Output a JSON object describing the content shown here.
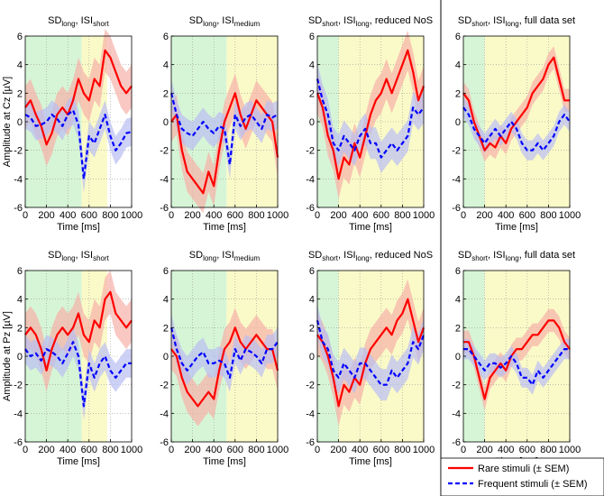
{
  "chart_data": {
    "type": "line",
    "x_range": [
      0,
      1000
    ],
    "y_range": [
      6,
      -6
    ],
    "x_ticks": [
      "0",
      "200",
      "400",
      "600",
      "800",
      "1000"
    ],
    "y_ticks": [
      "-6",
      "-4",
      "-2",
      "0",
      "2",
      "4",
      "6"
    ],
    "xlabel": "Time [ms]",
    "ylabels": [
      "Amplitude at Cz [µV]",
      "Amplitude at Pz [µV]"
    ],
    "grid": true,
    "legend": {
      "position": "bottom-right",
      "entries": [
        {
          "name": "Rare stimuli (± SEM)",
          "color": "#ff0000",
          "style": "solid"
        },
        {
          "name": "Frequent stimuli (± SEM)",
          "color": "#0000ff",
          "style": "dashed"
        }
      ]
    },
    "colors": {
      "green": "#d6f5d6",
      "yellow": "#fafac8",
      "rare": "#ff0000",
      "rare_band": "#f7b0a8",
      "freq": "#0000ff",
      "freq_band": "#b9bdf2"
    },
    "columns": [
      {
        "title": {
          "a": "SD",
          "a_sub": "long",
          "b": ", ISI",
          "b_sub": "short",
          "c": ""
        },
        "shading": [
          {
            "from": 0,
            "to": 530,
            "color": "green"
          },
          {
            "from": 530,
            "to": 770,
            "color": "yellow"
          }
        ]
      },
      {
        "title": {
          "a": "SD",
          "a_sub": "long",
          "b": ", ISI",
          "b_sub": "medium",
          "c": ""
        },
        "shading": [
          {
            "from": 0,
            "to": 520,
            "color": "green"
          },
          {
            "from": 520,
            "to": 1000,
            "color": "yellow"
          }
        ]
      },
      {
        "title": {
          "a": "SD",
          "a_sub": "short",
          "b": ", ISI",
          "b_sub": "long",
          "c": ", reduced NoS"
        },
        "shading": [
          {
            "from": 0,
            "to": 200,
            "color": "green"
          },
          {
            "from": 200,
            "to": 1000,
            "color": "yellow"
          }
        ]
      },
      {
        "title": {
          "a": "SD",
          "a_sub": "short",
          "b": ", ISI",
          "b_sub": "long",
          "c": ", full data set"
        },
        "shading": [
          {
            "from": 0,
            "to": 200,
            "color": "green"
          },
          {
            "from": 200,
            "to": 1000,
            "color": "yellow"
          }
        ]
      }
    ],
    "panels": [
      {
        "row": "Cz",
        "column": 1,
        "series": [
          {
            "name": "Rare stimuli",
            "x": [
              0,
              50,
              100,
              150,
              200,
              250,
              300,
              350,
              400,
              450,
              500,
              550,
              600,
              650,
              700,
              750,
              800,
              850,
              900,
              950,
              1000
            ],
            "y": [
              1.0,
              1.5,
              0.5,
              -0.3,
              -1.6,
              -0.8,
              0.5,
              1.0,
              0.5,
              1.5,
              3.0,
              2.0,
              1.5,
              3.0,
              2.5,
              5.0,
              4.5,
              3.5,
              2.5,
              2.0,
              2.5
            ],
            "sem": 1.5
          },
          {
            "name": "Frequent stimuli",
            "x": [
              0,
              50,
              100,
              150,
              200,
              250,
              300,
              350,
              400,
              450,
              500,
              550,
              600,
              650,
              700,
              750,
              800,
              850,
              900,
              950,
              1000
            ],
            "y": [
              0.5,
              0.3,
              -0.3,
              -0.2,
              0.0,
              0.5,
              0.2,
              -0.3,
              0.5,
              0.8,
              -0.2,
              -4.0,
              -1.0,
              -1.5,
              -0.5,
              0.5,
              -1.0,
              -2.0,
              -1.5,
              -0.8,
              -0.7
            ],
            "sem": 1.0
          }
        ]
      },
      {
        "row": "Cz",
        "column": 2,
        "series": [
          {
            "name": "Rare stimuli",
            "x": [
              0,
              50,
              100,
              150,
              200,
              250,
              300,
              350,
              400,
              450,
              500,
              550,
              600,
              650,
              700,
              750,
              800,
              850,
              900,
              950,
              1000
            ],
            "y": [
              0.0,
              0.5,
              -2.0,
              -3.5,
              -4.0,
              -4.5,
              -5.0,
              -3.5,
              -4.5,
              -2.0,
              0.0,
              1.0,
              2.0,
              0.5,
              -0.5,
              0.5,
              1.5,
              1.0,
              0.5,
              0.0,
              -2.5
            ],
            "sem": 1.4
          },
          {
            "name": "Frequent stimuli",
            "x": [
              0,
              50,
              100,
              150,
              200,
              250,
              300,
              350,
              400,
              450,
              500,
              550,
              600,
              650,
              700,
              750,
              800,
              850,
              900,
              950,
              1000
            ],
            "y": [
              2.0,
              0.5,
              -0.5,
              -0.8,
              -1.0,
              -0.5,
              0.0,
              -0.5,
              -0.8,
              -0.3,
              -0.5,
              -3.0,
              0.5,
              -0.3,
              0.3,
              0.5,
              0.0,
              -0.5,
              0.5,
              0.3,
              0.5
            ],
            "sem": 1.0
          }
        ]
      },
      {
        "row": "Cz",
        "column": 3,
        "series": [
          {
            "name": "Rare stimuli",
            "x": [
              0,
              50,
              100,
              150,
              200,
              250,
              300,
              350,
              400,
              450,
              500,
              550,
              600,
              650,
              700,
              750,
              800,
              850,
              900,
              950,
              1000
            ],
            "y": [
              2.0,
              1.0,
              -1.0,
              -2.0,
              -4.0,
              -2.5,
              -3.0,
              -1.5,
              -2.5,
              -1.0,
              0.5,
              1.5,
              2.0,
              3.0,
              2.0,
              3.0,
              4.0,
              5.0,
              3.5,
              1.5,
              2.5
            ],
            "sem": 1.4
          },
          {
            "name": "Frequent stimuli",
            "x": [
              0,
              50,
              100,
              150,
              200,
              250,
              300,
              350,
              400,
              450,
              500,
              550,
              600,
              650,
              700,
              750,
              800,
              850,
              900,
              950,
              1000
            ],
            "y": [
              3.0,
              1.5,
              0.5,
              -1.5,
              -2.0,
              -1.0,
              -1.5,
              -2.0,
              -1.0,
              -0.5,
              -1.5,
              -1.5,
              -2.5,
              -2.0,
              -1.5,
              -2.0,
              -1.5,
              -1.0,
              1.0,
              0.5,
              1.0
            ],
            "sem": 1.1
          }
        ]
      },
      {
        "row": "Cz",
        "column": 4,
        "series": [
          {
            "name": "Rare stimuli",
            "x": [
              0,
              50,
              100,
              150,
              200,
              250,
              300,
              350,
              400,
              450,
              500,
              550,
              600,
              650,
              700,
              750,
              800,
              850,
              900,
              950,
              1000
            ],
            "y": [
              2.0,
              1.5,
              0.0,
              -1.0,
              -2.0,
              -1.5,
              -1.8,
              -1.0,
              -1.5,
              -0.5,
              0.0,
              0.5,
              1.0,
              2.0,
              2.5,
              3.0,
              4.0,
              4.5,
              3.0,
              1.5,
              1.5
            ],
            "sem": 0.8
          },
          {
            "name": "Frequent stimuli",
            "x": [
              0,
              50,
              100,
              150,
              200,
              250,
              300,
              350,
              400,
              450,
              500,
              550,
              600,
              650,
              700,
              750,
              800,
              850,
              900,
              950,
              1000
            ],
            "y": [
              1.0,
              0.5,
              -0.5,
              -1.0,
              -1.5,
              -1.0,
              -0.5,
              -1.0,
              -0.5,
              0.0,
              -0.5,
              -1.5,
              -2.0,
              -2.0,
              -1.5,
              -2.0,
              -1.5,
              -1.0,
              0.0,
              0.5,
              0.0
            ],
            "sem": 0.7
          }
        ]
      },
      {
        "row": "Pz",
        "column": 1,
        "series": [
          {
            "name": "Rare stimuli",
            "x": [
              0,
              50,
              100,
              150,
              200,
              250,
              300,
              350,
              400,
              450,
              500,
              550,
              600,
              650,
              700,
              750,
              800,
              850,
              900,
              950,
              1000
            ],
            "y": [
              1.5,
              2.0,
              1.5,
              0.5,
              -1.0,
              0.5,
              1.5,
              2.0,
              1.5,
              2.0,
              3.0,
              1.5,
              1.0,
              2.5,
              2.0,
              4.0,
              4.5,
              3.0,
              2.5,
              2.0,
              2.5
            ],
            "sem": 1.5
          },
          {
            "name": "Frequent stimuli",
            "x": [
              0,
              50,
              100,
              150,
              200,
              250,
              300,
              350,
              400,
              450,
              500,
              550,
              600,
              650,
              700,
              750,
              800,
              850,
              900,
              950,
              1000
            ],
            "y": [
              0.5,
              0.0,
              0.2,
              -0.3,
              0.5,
              0.3,
              0.0,
              -0.5,
              0.2,
              1.0,
              0.0,
              -3.5,
              -0.5,
              -1.5,
              -0.5,
              0.0,
              -1.0,
              -1.5,
              -1.0,
              -0.5,
              -0.5
            ],
            "sem": 1.0
          }
        ]
      },
      {
        "row": "Pz",
        "column": 2,
        "series": [
          {
            "name": "Rare stimuli",
            "x": [
              0,
              50,
              100,
              150,
              200,
              250,
              300,
              350,
              400,
              450,
              500,
              550,
              600,
              650,
              700,
              750,
              800,
              850,
              900,
              950,
              1000
            ],
            "y": [
              0.5,
              0.0,
              -1.5,
              -2.5,
              -3.0,
              -3.5,
              -3.0,
              -2.5,
              -3.0,
              -1.0,
              0.5,
              1.0,
              2.0,
              1.0,
              0.5,
              1.0,
              1.5,
              1.0,
              0.5,
              0.5,
              -1.0
            ],
            "sem": 1.4
          },
          {
            "name": "Frequent stimuli",
            "x": [
              0,
              50,
              100,
              150,
              200,
              250,
              300,
              350,
              400,
              450,
              500,
              550,
              600,
              650,
              700,
              750,
              800,
              850,
              900,
              950,
              1000
            ],
            "y": [
              2.0,
              0.5,
              -0.5,
              -1.0,
              -0.5,
              0.0,
              0.3,
              -0.5,
              -0.5,
              -0.3,
              -0.5,
              -1.5,
              0.5,
              -0.3,
              0.5,
              0.3,
              0.0,
              -0.5,
              0.5,
              0.5,
              1.0
            ],
            "sem": 1.0
          }
        ]
      },
      {
        "row": "Pz",
        "column": 3,
        "series": [
          {
            "name": "Rare stimuli",
            "x": [
              0,
              50,
              100,
              150,
              200,
              250,
              300,
              350,
              400,
              450,
              500,
              550,
              600,
              650,
              700,
              750,
              800,
              850,
              900,
              950,
              1000
            ],
            "y": [
              1.5,
              1.0,
              0.0,
              -1.5,
              -3.5,
              -2.0,
              -2.5,
              -1.5,
              -2.0,
              -0.5,
              0.5,
              1.0,
              1.5,
              2.0,
              1.5,
              2.5,
              3.0,
              4.0,
              2.5,
              1.0,
              2.0
            ],
            "sem": 1.4
          },
          {
            "name": "Frequent stimuli",
            "x": [
              0,
              50,
              100,
              150,
              200,
              250,
              300,
              350,
              400,
              450,
              500,
              550,
              600,
              650,
              700,
              750,
              800,
              850,
              900,
              950,
              1000
            ],
            "y": [
              2.5,
              1.0,
              0.5,
              -1.0,
              -1.5,
              -0.5,
              -1.0,
              -1.5,
              -0.5,
              -0.5,
              -1.0,
              -1.5,
              -2.0,
              -2.0,
              -1.0,
              -1.5,
              -1.0,
              -0.5,
              1.0,
              0.5,
              1.5
            ],
            "sem": 1.1
          }
        ]
      },
      {
        "row": "Pz",
        "column": 4,
        "series": [
          {
            "name": "Rare stimuli",
            "x": [
              0,
              50,
              100,
              150,
              200,
              250,
              300,
              350,
              400,
              450,
              500,
              550,
              600,
              650,
              700,
              750,
              800,
              850,
              900,
              950,
              1000
            ],
            "y": [
              1.0,
              1.0,
              0.0,
              -1.5,
              -3.0,
              -1.5,
              -1.0,
              -0.5,
              -1.0,
              0.0,
              0.5,
              0.5,
              1.0,
              1.5,
              1.5,
              2.0,
              2.5,
              2.5,
              2.0,
              1.0,
              0.5
            ],
            "sem": 0.8
          },
          {
            "name": "Frequent stimuli",
            "x": [
              0,
              50,
              100,
              150,
              200,
              250,
              300,
              350,
              400,
              450,
              500,
              550,
              600,
              650,
              700,
              750,
              800,
              850,
              900,
              950,
              1000
            ],
            "y": [
              0.5,
              0.5,
              0.0,
              -0.5,
              -1.0,
              -0.5,
              -0.5,
              -0.8,
              -0.5,
              0.0,
              -0.5,
              -1.5,
              -1.5,
              -2.0,
              -1.0,
              -1.5,
              -1.0,
              -0.5,
              0.0,
              0.5,
              0.5
            ],
            "sem": 0.7
          }
        ]
      }
    ]
  }
}
